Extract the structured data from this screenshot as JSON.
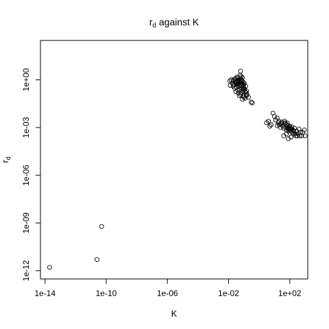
{
  "chart_data": {
    "type": "scatter",
    "title": {
      "main": "r",
      "subscript": "d",
      "rest": " against K"
    },
    "xlabel": "K",
    "ylabel": {
      "main": "r",
      "subscript": "d"
    },
    "x_scale": "log",
    "y_scale": "log",
    "xlim": [
      5e-15,
      1500.0
    ],
    "ylim": [
      3e-13,
      300.0
    ],
    "x_ticks": [
      {
        "value": 1e-14,
        "label": "1e-14"
      },
      {
        "value": 1e-10,
        "label": "1e-10"
      },
      {
        "value": 1e-06,
        "label": "1e-06"
      },
      {
        "value": 0.01,
        "label": "1e-02"
      },
      {
        "value": 100.0,
        "label": "1e+02"
      }
    ],
    "y_ticks": [
      {
        "value": 1e-12,
        "label": "1e-12"
      },
      {
        "value": 1e-09,
        "label": "1e-09"
      },
      {
        "value": 1e-06,
        "label": "1e-06"
      },
      {
        "value": 0.001,
        "label": "1e-03"
      },
      {
        "value": 1,
        "label": "1e+00"
      }
    ],
    "grid": false,
    "marker": "open-circle",
    "points": [
      [
        2e-14,
        1.6e-12
      ],
      [
        2.5e-11,
        5e-12
      ],
      [
        5e-11,
        6e-10
      ],
      [
        0.012,
        0.85
      ],
      [
        0.013,
        0.45
      ],
      [
        0.015,
        1.0
      ],
      [
        0.018,
        0.6
      ],
      [
        0.02,
        0.9
      ],
      [
        0.022,
        0.5
      ],
      [
        0.025,
        1.1
      ],
      [
        0.028,
        0.7
      ],
      [
        0.03,
        1.2
      ],
      [
        0.032,
        0.35
      ],
      [
        0.035,
        0.55
      ],
      [
        0.038,
        0.9
      ],
      [
        0.04,
        0.8
      ],
      [
        0.042,
        1.3
      ],
      [
        0.045,
        0.6
      ],
      [
        0.048,
        0.4
      ],
      [
        0.05,
        1.0
      ],
      [
        0.052,
        0.75
      ],
      [
        0.055,
        0.5
      ],
      [
        0.058,
        2.0
      ],
      [
        0.06,
        3.5
      ],
      [
        0.062,
        0.95
      ],
      [
        0.065,
        1.1
      ],
      [
        0.068,
        0.65
      ],
      [
        0.07,
        0.45
      ],
      [
        0.072,
        0.3
      ],
      [
        0.075,
        0.85
      ],
      [
        0.078,
        0.6
      ],
      [
        0.08,
        1.4
      ],
      [
        0.082,
        0.5
      ],
      [
        0.085,
        0.35
      ],
      [
        0.088,
        0.25
      ],
      [
        0.09,
        0.2
      ],
      [
        0.092,
        0.7
      ],
      [
        0.095,
        0.45
      ],
      [
        0.1,
        0.3
      ],
      [
        0.105,
        0.6
      ],
      [
        0.11,
        0.25
      ],
      [
        0.12,
        0.18
      ],
      [
        0.13,
        0.4
      ],
      [
        0.14,
        0.15
      ],
      [
        0.15,
        0.2
      ],
      [
        0.16,
        0.12
      ],
      [
        0.03,
        0.18
      ],
      [
        0.04,
        0.22
      ],
      [
        0.045,
        0.15
      ],
      [
        0.05,
        0.1
      ],
      [
        0.06,
        0.12
      ],
      [
        0.08,
        0.06
      ],
      [
        0.1,
        0.08
      ],
      [
        0.12,
        0.07
      ],
      [
        0.15,
        0.1
      ],
      [
        0.2,
        0.08
      ],
      [
        0.3,
        0.04
      ],
      [
        0.35,
        0.035
      ],
      [
        0.025,
        0.3
      ],
      [
        0.035,
        1.5
      ],
      [
        0.055,
        0.25
      ],
      [
        0.07,
        0.15
      ],
      [
        0.09,
        0.1
      ],
      [
        0.065,
        1.6
      ],
      [
        0.075,
        0.9
      ],
      [
        0.04,
        0.55
      ],
      [
        0.03,
        0.65
      ],
      [
        0.02,
        0.4
      ],
      [
        3.0,
        0.002
      ],
      [
        4.0,
        0.0025
      ],
      [
        5.0,
        0.0012
      ],
      [
        6.0,
        0.0015
      ],
      [
        8.0,
        0.008
      ],
      [
        10.0,
        0.005
      ],
      [
        12.0,
        0.003
      ],
      [
        15.0,
        0.004
      ],
      [
        18.0,
        0.002
      ],
      [
        20.0,
        0.0015
      ],
      [
        25.0,
        0.001
      ],
      [
        30.0,
        0.0018
      ],
      [
        35.0,
        0.0012
      ],
      [
        40.0,
        0.0009
      ],
      [
        45.0,
        0.0025
      ],
      [
        50.0,
        0.002
      ],
      [
        55.0,
        0.0011
      ],
      [
        60.0,
        0.0007
      ],
      [
        65.0,
        0.0015
      ],
      [
        70.0,
        0.0009
      ],
      [
        75.0,
        0.0013
      ],
      [
        80.0,
        0.0006
      ],
      [
        85.0,
        0.0008
      ],
      [
        90.0,
        0.001
      ],
      [
        95.0,
        0.0007
      ],
      [
        100.0,
        0.0012
      ],
      [
        110.0,
        0.0009
      ],
      [
        120.0,
        0.0006
      ],
      [
        130.0,
        0.0008
      ],
      [
        140.0,
        0.0011
      ],
      [
        150.0,
        0.0005
      ],
      [
        160.0,
        0.0007
      ],
      [
        170.0,
        0.0004
      ],
      [
        180.0,
        0.0006
      ],
      [
        200.0,
        0.0009
      ],
      [
        220.0,
        0.0004
      ],
      [
        250.0,
        0.0003
      ],
      [
        280.0,
        0.0006
      ],
      [
        300.0,
        0.0003
      ],
      [
        350.0,
        0.0004
      ],
      [
        400.0,
        0.0008
      ],
      [
        450.0,
        0.0003
      ],
      [
        500.0,
        0.0005
      ],
      [
        600.0,
        0.0003
      ],
      [
        700.0,
        0.0005
      ],
      [
        900.0,
        0.0007
      ],
      [
        1000.0,
        0.0003
      ],
      [
        40.0,
        0.0003
      ],
      [
        60.0,
        0.0004
      ],
      [
        80.0,
        0.0002
      ],
      [
        120.0,
        0.00025
      ],
      [
        50.0,
        0.0017
      ],
      [
        30.0,
        0.0022
      ],
      [
        20.0,
        0.0024
      ],
      [
        15.0,
        0.0013
      ],
      [
        25.0,
        0.0016
      ],
      [
        70.0,
        0.0019
      ]
    ]
  }
}
